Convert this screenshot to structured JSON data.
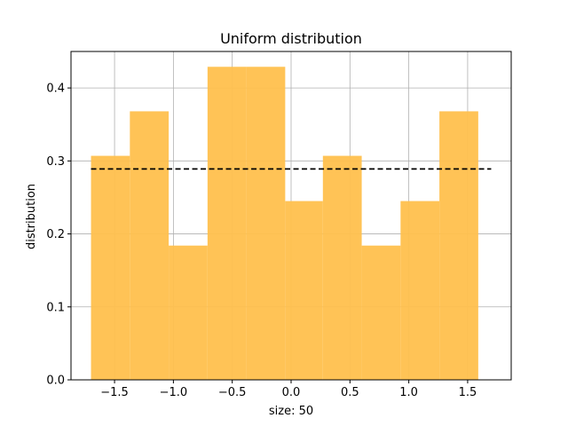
{
  "chart_data": {
    "type": "bar",
    "title": "Uniform distribution",
    "xlabel": "size: 50",
    "ylabel": "distribution",
    "xlim": [
      -1.87,
      1.87
    ],
    "ylim": [
      0,
      0.45
    ],
    "grid": true,
    "x_ticks": [
      {
        "value": -1.5,
        "label": "−1.5"
      },
      {
        "value": -1.0,
        "label": "−1.0"
      },
      {
        "value": -0.5,
        "label": "−0.5"
      },
      {
        "value": 0.0,
        "label": "0.0"
      },
      {
        "value": 0.5,
        "label": "0.5"
      },
      {
        "value": 1.0,
        "label": "1.0"
      },
      {
        "value": 1.5,
        "label": "1.5"
      }
    ],
    "y_ticks": [
      {
        "value": 0.0,
        "label": "0.0"
      },
      {
        "value": 0.1,
        "label": "0.1"
      },
      {
        "value": 0.2,
        "label": "0.2"
      },
      {
        "value": 0.3,
        "label": "0.3"
      },
      {
        "value": 0.4,
        "label": "0.4"
      }
    ],
    "bins": [
      {
        "x0": -1.7,
        "x1": -1.37,
        "value": 0.307
      },
      {
        "x0": -1.37,
        "x1": -1.04,
        "value": 0.368
      },
      {
        "x0": -1.04,
        "x1": -0.71,
        "value": 0.184
      },
      {
        "x0": -0.71,
        "x1": -0.38,
        "value": 0.429
      },
      {
        "x0": -0.38,
        "x1": -0.05,
        "value": 0.429
      },
      {
        "x0": -0.05,
        "x1": 0.27,
        "value": 0.245
      },
      {
        "x0": 0.27,
        "x1": 0.6,
        "value": 0.307
      },
      {
        "x0": 0.6,
        "x1": 0.93,
        "value": 0.184
      },
      {
        "x0": 0.93,
        "x1": 1.26,
        "value": 0.245
      },
      {
        "x0": 1.26,
        "x1": 1.59,
        "value": 0.368
      }
    ],
    "reference_line": {
      "x0": -1.7,
      "x1": 1.7,
      "y": 0.289,
      "style": "dashed",
      "color": "#000000"
    },
    "colors": {
      "bar": "#ffc04d",
      "grid": "#b0b0b0",
      "axis": "#000000"
    }
  }
}
